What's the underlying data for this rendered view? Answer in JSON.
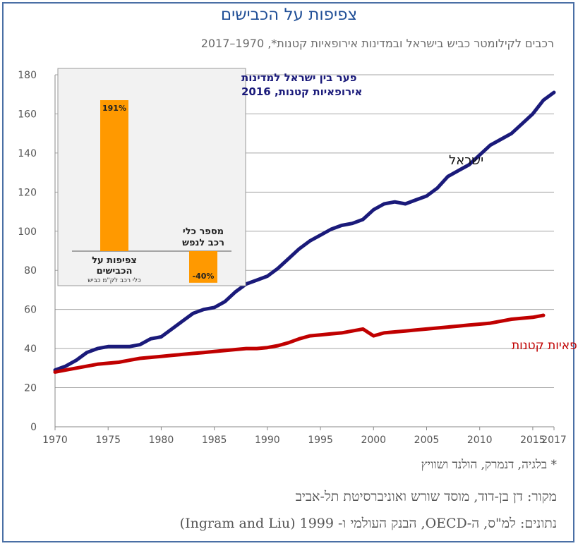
{
  "title": "צפיפות על הכבישים",
  "subtitle": "רכבים לקילומטר כביש בישראל ובמדינות אירופאיות קטנות*, 1970–2017",
  "footnote": "* בלגיה, דנמרק, הולנד ושוויץ",
  "source": "מקור:  דן בן-דוד, מוסד שורש ואוניברסיטת תל-אביב",
  "data_note": "נתונים: למ\"ס, ה-OECD, הבנק העולמי ו-  1999 (Ingram and Liu)",
  "colors": {
    "israel": "#1a1a7a",
    "europe": "#c00000",
    "bar": "#ff9900",
    "title": "#1f4e96",
    "inset_title": "#1a1a7a"
  },
  "chart_data": [
    {
      "type": "line",
      "ylim": [
        0,
        180
      ],
      "yticks": [
        0,
        20,
        40,
        60,
        80,
        100,
        120,
        140,
        160,
        180
      ],
      "xlim": [
        1970,
        2017
      ],
      "xticks": [
        1970,
        1975,
        1980,
        1985,
        1990,
        1995,
        2000,
        2005,
        2010,
        2015,
        2017
      ],
      "grid": true,
      "series": [
        {
          "name": "ישראל",
          "x": [
            1970,
            1971,
            1972,
            1973,
            1974,
            1975,
            1976,
            1977,
            1978,
            1979,
            1980,
            1981,
            1982,
            1983,
            1984,
            1985,
            1986,
            1987,
            1988,
            1989,
            1990,
            1991,
            1992,
            1993,
            1994,
            1995,
            1996,
            1997,
            1998,
            1999,
            2000,
            2001,
            2002,
            2003,
            2004,
            2005,
            2006,
            2007,
            2008,
            2009,
            2010,
            2011,
            2012,
            2013,
            2014,
            2015,
            2016,
            2017
          ],
          "values": [
            29,
            31,
            34,
            38,
            40,
            41,
            41,
            41,
            42,
            45,
            46,
            50,
            54,
            58,
            60,
            61,
            64,
            69,
            73,
            75,
            77,
            81,
            86,
            91,
            95,
            98,
            101,
            103,
            104,
            106,
            111,
            114,
            115,
            114,
            116,
            118,
            122,
            128,
            131,
            134,
            139,
            144,
            147,
            150,
            155,
            160,
            167,
            171
          ]
        },
        {
          "name": "מדינות אירופאיות קטנות",
          "x": [
            1970,
            1971,
            1972,
            1973,
            1974,
            1975,
            1976,
            1977,
            1978,
            1979,
            1980,
            1981,
            1982,
            1983,
            1984,
            1985,
            1986,
            1987,
            1988,
            1989,
            1990,
            1991,
            1992,
            1993,
            1994,
            1995,
            1996,
            1997,
            1998,
            1999,
            2000,
            2001,
            2002,
            2003,
            2004,
            2005,
            2006,
            2007,
            2008,
            2009,
            2010,
            2011,
            2012,
            2013,
            2014,
            2015,
            2016
          ],
          "values": [
            28,
            29,
            30,
            31,
            32,
            32.5,
            33,
            34,
            35,
            35.5,
            36,
            36.5,
            37,
            37.5,
            38,
            38.5,
            39,
            39.5,
            40,
            40,
            40.5,
            41.5,
            43,
            45,
            46.5,
            47,
            47.5,
            48,
            49,
            50,
            46.5,
            48,
            48.5,
            49,
            49.5,
            50,
            50.5,
            51,
            51.5,
            52,
            52.5,
            53,
            54,
            55,
            55.5,
            56,
            57
          ]
        }
      ]
    },
    {
      "type": "bar",
      "title": "פער בין ישראל למדינות אירופאיות קטנות, 2016",
      "categories": [
        "צפיפות על הכבישים",
        "מספר כלי רכב לנפש"
      ],
      "category_sublabels": [
        "כלי רכב לק\"מ כביש",
        ""
      ],
      "values": [
        191,
        -40
      ],
      "value_labels": [
        "191%",
        "-40%"
      ]
    }
  ]
}
